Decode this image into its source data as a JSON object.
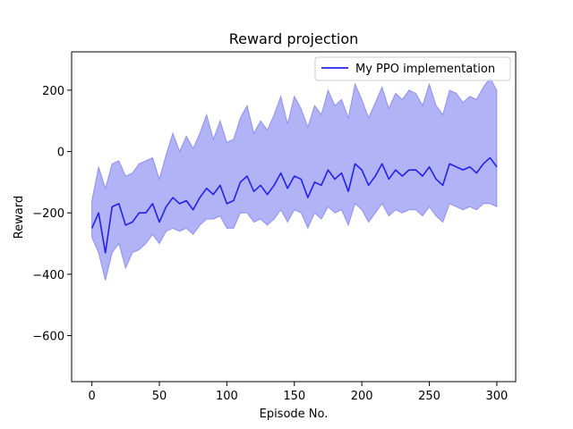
{
  "chart_data": {
    "type": "line",
    "title": "Reward projection",
    "xlabel": "Episode No.",
    "ylabel": "Reward",
    "xlim": [
      -15,
      314
    ],
    "ylim": [
      -750,
      325
    ],
    "xticks": [
      0,
      50,
      100,
      150,
      200,
      250,
      300
    ],
    "yticks": [
      -600,
      -400,
      -200,
      0,
      200
    ],
    "grid": false,
    "legend_location": "upper right",
    "colors": {
      "line": "#2222ee",
      "band": "#5555ee",
      "band_edge": "#6666ee"
    },
    "series": [
      {
        "name": "My PPO implementation",
        "x_start": 0,
        "x_step": 5,
        "mean": [
          -250,
          -200,
          -330,
          -180,
          -170,
          -240,
          -230,
          -200,
          -200,
          -170,
          -230,
          -180,
          -150,
          -170,
          -160,
          -190,
          -150,
          -120,
          -140,
          -110,
          -170,
          -160,
          -100,
          -80,
          -130,
          -110,
          -140,
          -110,
          -70,
          -120,
          -80,
          -90,
          -150,
          -100,
          -110,
          -60,
          -90,
          -70,
          -130,
          -40,
          -60,
          -110,
          -80,
          -40,
          -90,
          -60,
          -80,
          -60,
          -60,
          -80,
          -50,
          -90,
          -110,
          -40,
          -50,
          -60,
          -50,
          -70,
          -40,
          -20,
          -50
        ],
        "lower": [
          -280,
          -330,
          -420,
          -330,
          -300,
          -380,
          -330,
          -320,
          -300,
          -270,
          -300,
          -260,
          -250,
          -260,
          -250,
          -270,
          -240,
          -220,
          -220,
          -210,
          -250,
          -250,
          -200,
          -200,
          -230,
          -220,
          -240,
          -220,
          -190,
          -230,
          -190,
          -200,
          -250,
          -200,
          -220,
          -180,
          -200,
          -190,
          -240,
          -170,
          -190,
          -230,
          -200,
          -170,
          -210,
          -190,
          -200,
          -190,
          -190,
          -210,
          -180,
          -210,
          -230,
          -170,
          -180,
          -190,
          -180,
          -190,
          -170,
          -170,
          -180
        ],
        "upper": [
          -160,
          -50,
          -120,
          -40,
          -30,
          -80,
          -70,
          -40,
          -30,
          -20,
          -90,
          -10,
          60,
          0,
          50,
          10,
          60,
          120,
          40,
          100,
          30,
          40,
          110,
          150,
          60,
          100,
          70,
          120,
          180,
          90,
          180,
          140,
          80,
          150,
          120,
          200,
          150,
          170,
          110,
          220,
          170,
          110,
          160,
          210,
          140,
          190,
          170,
          200,
          190,
          150,
          220,
          150,
          120,
          200,
          190,
          160,
          180,
          170,
          210,
          240,
          200
        ]
      }
    ]
  }
}
